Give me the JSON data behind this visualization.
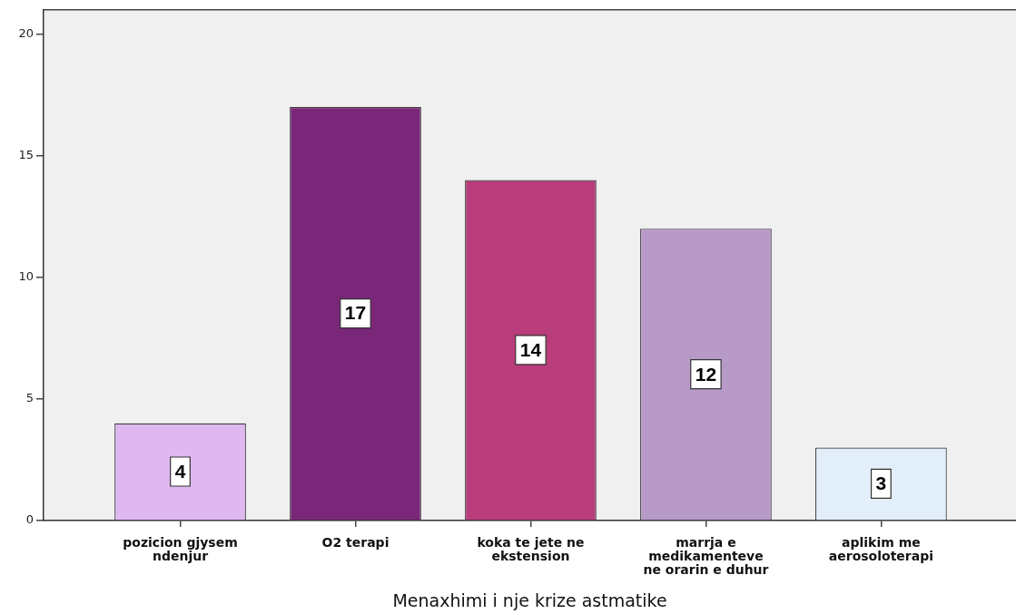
{
  "chart_data": {
    "type": "bar",
    "xlabel": "Menaxhimi i nje krize astmatike",
    "categories": [
      "pozicion gjysem ndenjur",
      "O2 terapi",
      "koka te jete ne ekstension",
      "marrja e medikamenteve ne orarin e duhur",
      "aplikim me aerosoloterapi"
    ],
    "values": [
      4,
      17,
      14,
      12,
      3
    ],
    "colors": [
      "#dfb8f1",
      "#7b2779",
      "#b93d7a",
      "#b79ac8",
      "#e2eefa"
    ],
    "ylim": [
      0,
      21
    ],
    "yticks": [
      0,
      5,
      10,
      15,
      20
    ],
    "grid": false,
    "legend": false,
    "data_labels": true
  }
}
